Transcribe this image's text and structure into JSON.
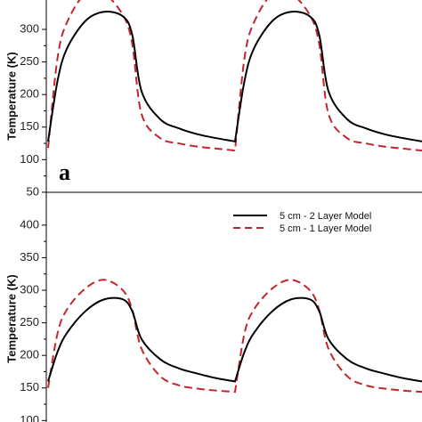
{
  "chart_data": [
    {
      "type": "line",
      "panel_label": "a",
      "ylabel": "Temperature (K)",
      "ylim": [
        50,
        350
      ],
      "yticks": [
        50,
        100,
        150,
        200,
        250,
        300
      ],
      "xlim": [
        0,
        2
      ],
      "series": [
        {
          "color": "#000000",
          "dash": "solid",
          "x": [
            0,
            0.05,
            0.1,
            0.2,
            0.3,
            0.4,
            0.45,
            0.5,
            0.6,
            0.7,
            0.8,
            0.9,
            1.0,
            1.0,
            1.05,
            1.1,
            1.2,
            1.3,
            1.4,
            1.45,
            1.5,
            1.6,
            1.7,
            1.8,
            1.9,
            2.0
          ],
          "y": [
            128,
            220,
            270,
            313,
            327,
            320,
            292,
            205,
            162,
            148,
            139,
            133,
            128,
            128,
            220,
            270,
            313,
            327,
            320,
            292,
            205,
            162,
            148,
            139,
            133,
            128
          ]
        },
        {
          "color": "#c0272d",
          "dash": "dashed",
          "x": [
            0,
            0.05,
            0.1,
            0.2,
            0.3,
            0.4,
            0.45,
            0.5,
            0.6,
            0.7,
            0.8,
            0.9,
            1.0,
            1.0,
            1.05,
            1.1,
            1.2,
            1.3,
            1.4,
            1.45,
            1.5,
            1.6,
            1.7,
            1.8,
            1.9,
            2.0
          ],
          "y": [
            118,
            255,
            310,
            355,
            355,
            322,
            278,
            170,
            133,
            125,
            120,
            117,
            114,
            114,
            255,
            310,
            355,
            355,
            322,
            278,
            170,
            133,
            125,
            120,
            117,
            114
          ]
        }
      ]
    },
    {
      "type": "line",
      "panel_label": "",
      "ylabel": "Temperature (K)",
      "ylim": [
        100,
        400
      ],
      "yticks": [
        100,
        150,
        200,
        250,
        300,
        350,
        400
      ],
      "xlim": [
        0,
        2
      ],
      "legend_position": "top-right",
      "series": [
        {
          "name": "5 cm - 2 Layer Model",
          "color": "#000000",
          "dash": "solid",
          "x": [
            0,
            0.05,
            0.1,
            0.2,
            0.3,
            0.4,
            0.45,
            0.5,
            0.6,
            0.7,
            0.8,
            0.9,
            1.0,
            1.0,
            1.05,
            1.1,
            1.2,
            1.3,
            1.4,
            1.45,
            1.5,
            1.6,
            1.7,
            1.8,
            1.9,
            2.0
          ],
          "y": [
            160,
            205,
            234,
            268,
            286,
            286,
            268,
            225,
            194,
            180,
            172,
            165,
            160,
            160,
            205,
            234,
            268,
            286,
            286,
            268,
            225,
            194,
            180,
            172,
            165,
            160
          ]
        },
        {
          "name": "5 cm - 1 Layer Model",
          "color": "#c0272d",
          "dash": "dashed",
          "x": [
            0,
            0.05,
            0.1,
            0.2,
            0.3,
            0.4,
            0.45,
            0.5,
            0.6,
            0.7,
            0.8,
            0.9,
            1.0,
            1.0,
            1.05,
            1.1,
            1.2,
            1.3,
            1.4,
            1.45,
            1.5,
            1.6,
            1.7,
            1.8,
            1.9,
            2.0
          ],
          "y": [
            150,
            233,
            270,
            303,
            316,
            300,
            270,
            210,
            168,
            154,
            149,
            146,
            144,
            144,
            233,
            270,
            303,
            316,
            300,
            270,
            210,
            168,
            154,
            149,
            146,
            144
          ]
        }
      ]
    }
  ]
}
